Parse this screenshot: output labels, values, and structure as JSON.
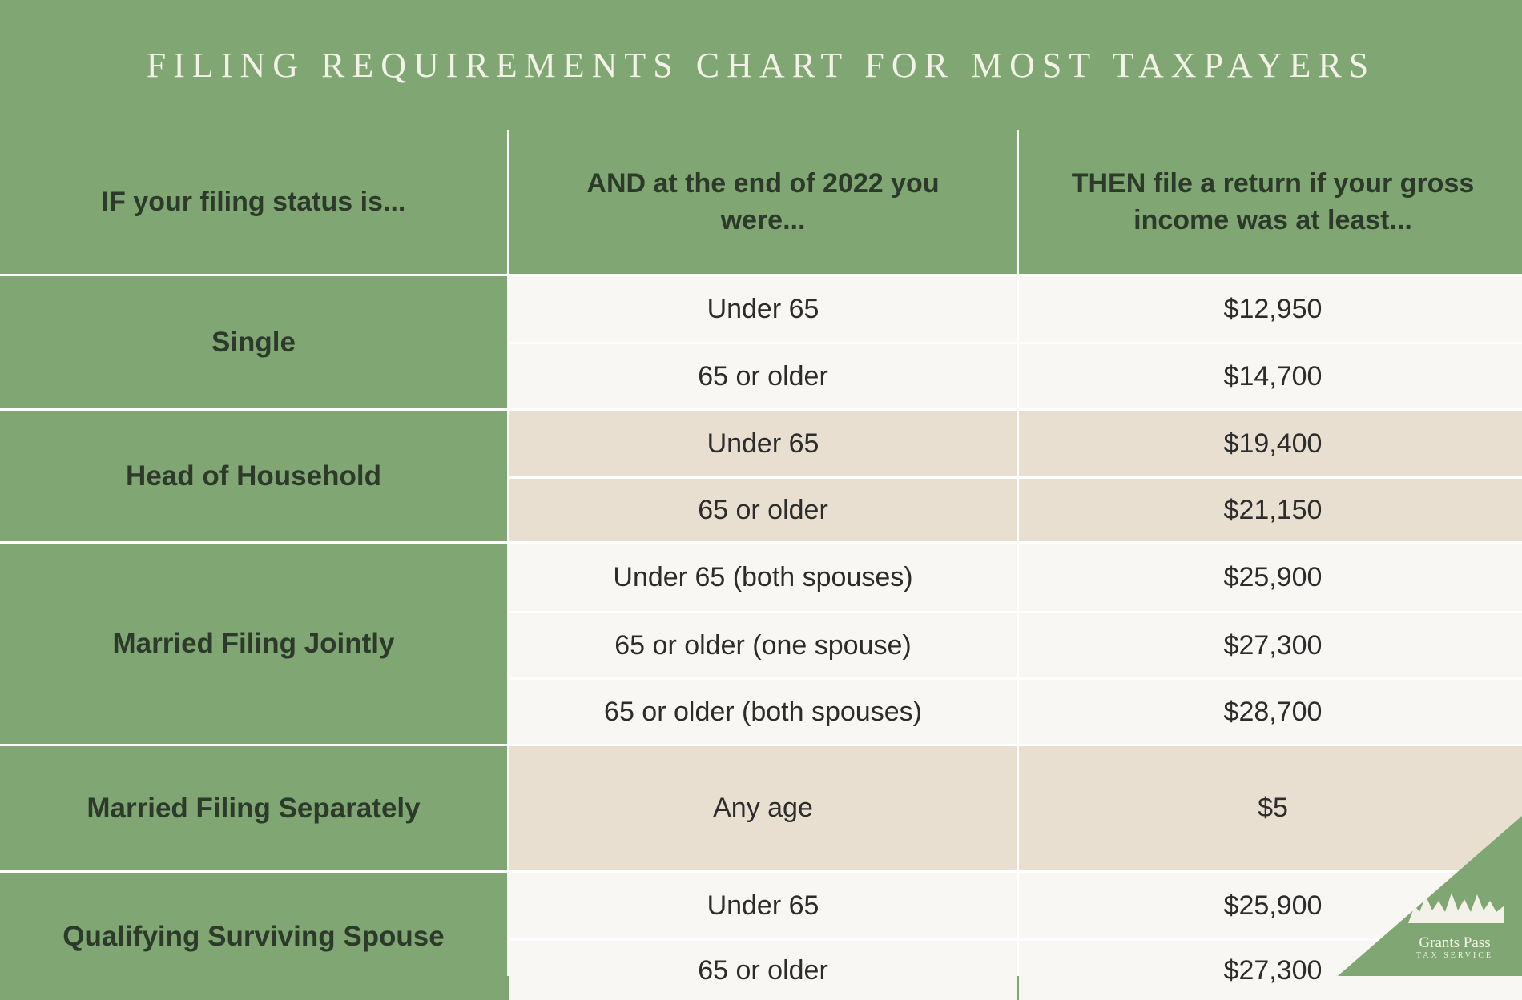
{
  "title": "FILING REQUIREMENTS CHART FOR MOST TAXPAYERS",
  "headers": {
    "status": "IF your filing status is...",
    "age": "AND at the end of 2022 you were...",
    "income": "THEN file a return if your gross income was at least..."
  },
  "rows": {
    "single": {
      "status": "Single",
      "r1": {
        "age": "Under 65",
        "income": "$12,950"
      },
      "r2": {
        "age": "65 or older",
        "income": "$14,700"
      }
    },
    "hoh": {
      "status": "Head of Household",
      "r1": {
        "age": "Under 65",
        "income": "$19,400"
      },
      "r2": {
        "age": "65 or older",
        "income": "$21,150"
      }
    },
    "mfj": {
      "status": "Married Filing Jointly",
      "r1": {
        "age": "Under 65 (both spouses)",
        "income": "$25,900"
      },
      "r2": {
        "age": "65 or older (one spouse)",
        "income": "$27,300"
      },
      "r3": {
        "age": "65 or older (both spouses)",
        "income": "$28,700"
      }
    },
    "mfs": {
      "status": "Married Filing Separately",
      "r1": {
        "age": "Any age",
        "income": "$5"
      }
    },
    "qss": {
      "status": "Qualifying Surviving Spouse",
      "r1": {
        "age": "Under 65",
        "income": "$25,900"
      },
      "r2": {
        "age": "65 or older",
        "income": "$27,300"
      }
    }
  },
  "logo": {
    "name": "Grants Pass",
    "sub": "TAX SERVICE",
    "icon": "pine-trees-icon"
  },
  "colors": {
    "green": "#7fa673",
    "tan": "#e8dfd0",
    "light": "#f8f7f3"
  }
}
